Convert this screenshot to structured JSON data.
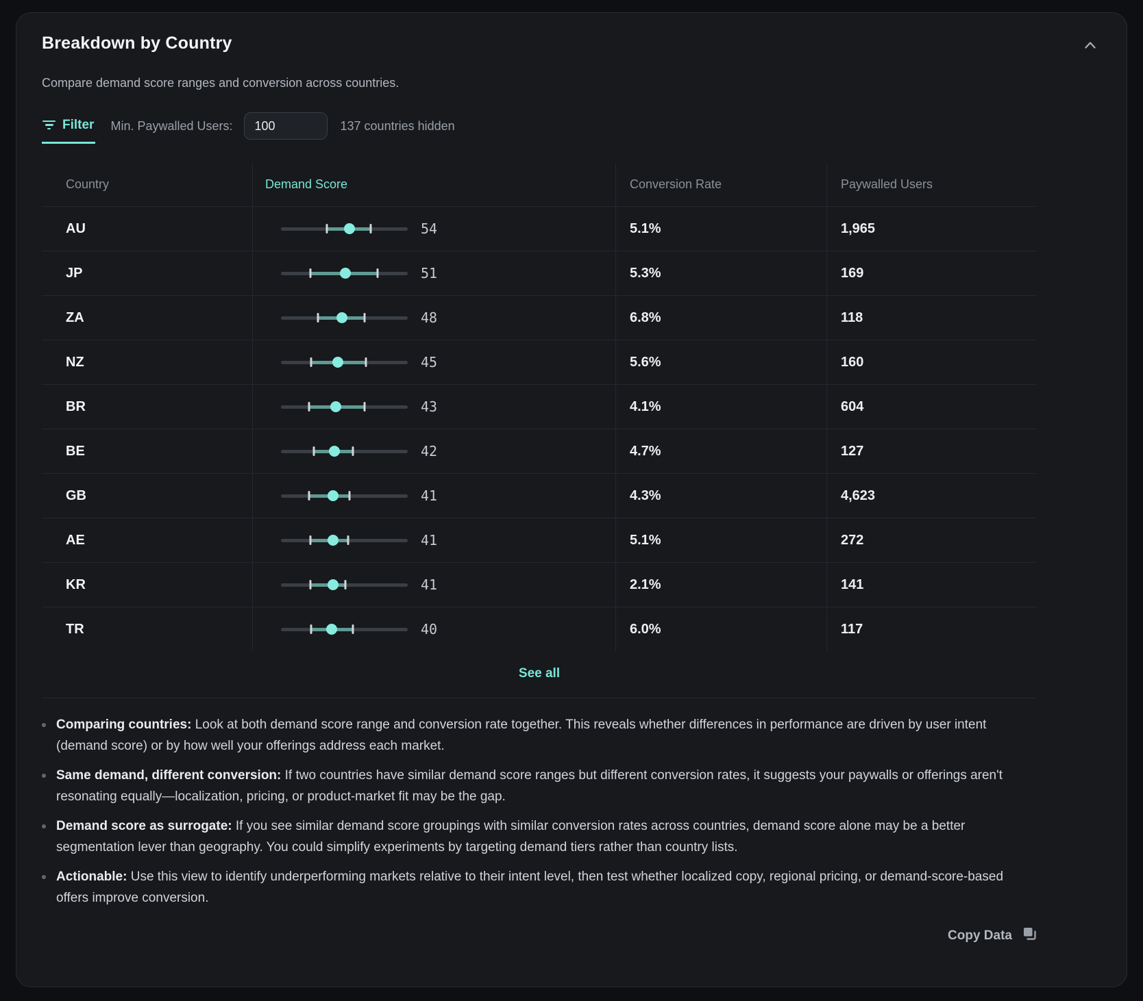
{
  "card": {
    "title": "Breakdown by Country",
    "subtitle": "Compare demand score ranges and conversion across countries.",
    "filter": {
      "tab_label": "Filter",
      "min_paywalled_label": "Min. Paywalled Users:",
      "input_value": "100",
      "hidden_note": "137 countries hidden"
    },
    "table": {
      "columns": [
        "Country",
        "Demand Score",
        "Conversion Rate",
        "Paywalled Users"
      ],
      "rows": [
        {
          "country": "AU",
          "score": 54,
          "range_min": 36,
          "range_max": 71,
          "conversion": "5.1%",
          "paywalled": "1,965"
        },
        {
          "country": "JP",
          "score": 51,
          "range_min": 23,
          "range_max": 76,
          "conversion": "5.3%",
          "paywalled": "169"
        },
        {
          "country": "ZA",
          "score": 48,
          "range_min": 29,
          "range_max": 66,
          "conversion": "6.8%",
          "paywalled": "118"
        },
        {
          "country": "NZ",
          "score": 45,
          "range_min": 24,
          "range_max": 67,
          "conversion": "5.6%",
          "paywalled": "160"
        },
        {
          "country": "BR",
          "score": 43,
          "range_min": 22,
          "range_max": 66,
          "conversion": "4.1%",
          "paywalled": "604"
        },
        {
          "country": "BE",
          "score": 42,
          "range_min": 26,
          "range_max": 57,
          "conversion": "4.7%",
          "paywalled": "127"
        },
        {
          "country": "GB",
          "score": 41,
          "range_min": 22,
          "range_max": 54,
          "conversion": "4.3%",
          "paywalled": "4,623"
        },
        {
          "country": "AE",
          "score": 41,
          "range_min": 23,
          "range_max": 53,
          "conversion": "5.1%",
          "paywalled": "272"
        },
        {
          "country": "KR",
          "score": 41,
          "range_min": 23,
          "range_max": 51,
          "conversion": "2.1%",
          "paywalled": "141"
        },
        {
          "country": "TR",
          "score": 40,
          "range_min": 24,
          "range_max": 57,
          "conversion": "6.0%",
          "paywalled": "117"
        }
      ]
    },
    "see_all_label": "See all",
    "insights": [
      {
        "lead": "Comparing countries:",
        "text": "Look at both demand score range and conversion rate together. This reveals whether differences in performance are driven by user intent (demand score) or by how well your offerings address each market."
      },
      {
        "lead": "Same demand, different conversion:",
        "text": "If two countries have similar demand score ranges but different conversion rates, it suggests your paywalls or offerings aren't resonating equally—localization, pricing, or product-market fit may be the gap."
      },
      {
        "lead": "Demand score as surrogate:",
        "text": "If you see similar demand score groupings with similar conversion rates across countries, demand score alone may be a better segmentation lever than geography. You could simplify experiments by targeting demand tiers rather than country lists."
      },
      {
        "lead": "Actionable:",
        "text": "Use this view to identify underperforming markets relative to their intent level, then test whether localized copy, regional pricing, or demand-score-based offers improve conversion."
      }
    ],
    "footer": {
      "copy_label": "Copy Data"
    },
    "colors": {
      "accent": "#7ae6d8",
      "slider_band": "#5e9a93",
      "slider_dot": "#87ecdf"
    }
  }
}
